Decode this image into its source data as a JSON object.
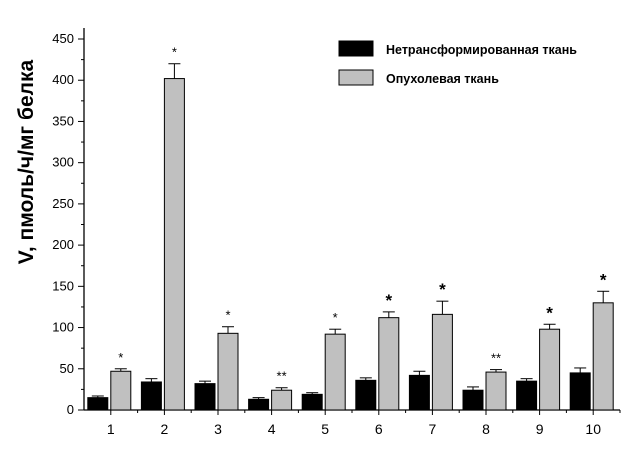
{
  "chart_data": {
    "type": "bar",
    "title": "",
    "xlabel": "",
    "ylabel": "V, пмоль/ч/мг белка",
    "ylim": [
      0,
      460
    ],
    "yticks": [
      0,
      50,
      100,
      150,
      200,
      250,
      300,
      350,
      400,
      450
    ],
    "categories": [
      "1",
      "2",
      "3",
      "4",
      "5",
      "6",
      "7",
      "8",
      "9",
      "10"
    ],
    "legend_position": "top-right",
    "grid": false,
    "series": [
      {
        "name": "Нетрансформированная ткань",
        "color": "#000000",
        "values": [
          15,
          34,
          32,
          13,
          19,
          36,
          42,
          24,
          35,
          45
        ],
        "errors": [
          2,
          4,
          3,
          2,
          2,
          3,
          5,
          4,
          3,
          6
        ]
      },
      {
        "name": "Опухолевая ткань",
        "color": "#c0c0c0",
        "values": [
          47,
          402,
          93,
          24,
          92,
          112,
          116,
          46,
          98,
          130
        ],
        "errors": [
          3,
          18,
          8,
          3,
          6,
          7,
          16,
          3,
          6,
          14
        ]
      }
    ],
    "annotations": [
      "*",
      "*",
      "*",
      "**",
      "*",
      "*",
      "*",
      "**",
      "*",
      "*"
    ]
  }
}
